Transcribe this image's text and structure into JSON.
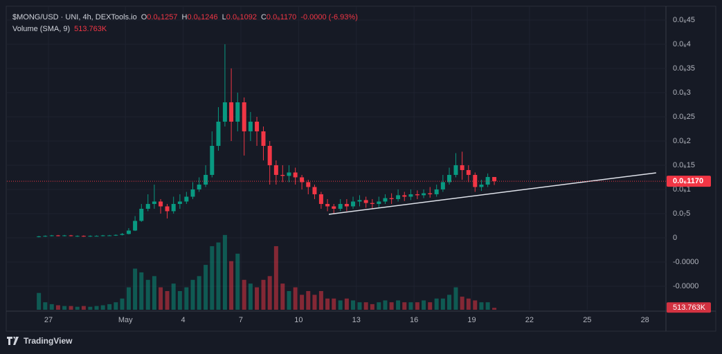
{
  "chart_data": {
    "type": "candlestick",
    "title": "$MONG/USD · UNI, 4h, DEXTools.io",
    "ohlc": [
      {
        "key": "O",
        "value": "0.0₆1257"
      },
      {
        "key": "H",
        "value": "0.0₆1246"
      },
      {
        "key": "L",
        "value": "0.0₆1092"
      },
      {
        "key": "C",
        "value": "0.0₆1170"
      }
    ],
    "change": "-0.0000 (-6.93%)",
    "indicator": {
      "name": "Volume (SMA, 9)",
      "value": "513.763K"
    },
    "up_color": "#089981",
    "down_color": "#f23645",
    "x": [
      -0.5,
      -0.17,
      0.17,
      0.5,
      0.83,
      1.17,
      1.5,
      1.83,
      2.17,
      2.5,
      2.83,
      3.17,
      3.5,
      3.83,
      4.17,
      4.5,
      4.83,
      5.17,
      5.5,
      5.83,
      6.17,
      6.5,
      6.83,
      7.17,
      7.5,
      7.83,
      8.17,
      8.5,
      8.83,
      9.17,
      9.5,
      9.83,
      10.17,
      10.5,
      10.83,
      11.17,
      11.5,
      11.83,
      12.17,
      12.5,
      12.83,
      13.17,
      13.5,
      13.83,
      14.17,
      14.5,
      14.83,
      15.17,
      15.5,
      15.83,
      16.17,
      16.5,
      16.83,
      17.17,
      17.5,
      17.83,
      18.17,
      18.5,
      18.83,
      19.17,
      19.5,
      19.83,
      20.17,
      20.5,
      20.83,
      21.17,
      21.5,
      21.83,
      22.17,
      22.5,
      22.83,
      23.17
    ],
    "open": [
      2e-09,
      3e-09,
      4e-09,
      5e-09,
      4e-09,
      5e-09,
      4e-09,
      4e-09,
      3e-09,
      4e-09,
      4e-09,
      5e-09,
      5e-09,
      6e-09,
      8e-09,
      1.5e-08,
      3.5e-08,
      6e-08,
      7e-08,
      7.5e-08,
      6.5e-08,
      5.5e-08,
      7e-08,
      7.5e-08,
      8.5e-08,
      1e-07,
      1.1e-07,
      1.3e-07,
      1.9e-07,
      2.4e-07,
      2.8e-07,
      2.4e-07,
      2.8e-07,
      2.2e-07,
      2.4e-07,
      2.2e-07,
      1.9e-07,
      1.5e-07,
      1.3e-07,
      1.28e-07,
      1.35e-07,
      1.25e-07,
      1.15e-07,
      1.05e-07,
      9e-08,
      7e-08,
      6.5e-08,
      6e-08,
      7e-08,
      6.5e-08,
      7.5e-08,
      7.8e-08,
      7.2e-08,
      7e-08,
      7.5e-08,
      8.2e-08,
      8e-08,
      8.8e-08,
      8.5e-08,
      9e-08,
      8.8e-08,
      9.2e-08,
      9e-08,
      1e-07,
      1.15e-07,
      1.3e-07,
      1.5e-07,
      1.4e-07,
      1.3e-07,
      1.05e-07,
      1.1e-07,
      1.257e-07
    ],
    "high": [
      4e-09,
      5e-09,
      6e-09,
      6e-09,
      6e-09,
      6e-09,
      5e-09,
      5e-09,
      5e-09,
      5e-09,
      6e-09,
      6e-09,
      7e-09,
      1e-08,
      2e-08,
      4.5e-08,
      7e-08,
      9e-08,
      1.1e-07,
      8e-08,
      7e-08,
      8.5e-08,
      9e-08,
      9.5e-08,
      1.15e-07,
      1.25e-07,
      1.5e-07,
      2.2e-07,
      2.7e-07,
      4e-07,
      3.5e-07,
      3e-07,
      2.9e-07,
      2.6e-07,
      2.5e-07,
      2.3e-07,
      2e-07,
      1.6e-07,
      1.5e-07,
      1.5e-07,
      1.45e-07,
      1.3e-07,
      1.2e-07,
      1.1e-07,
      9.5e-08,
      8e-08,
      7e-08,
      8e-08,
      8e-08,
      8.5e-08,
      8.8e-08,
      8.5e-08,
      8e-08,
      8.5e-08,
      9e-08,
      9.2e-08,
      1e-07,
      9.5e-08,
      1e-07,
      9.8e-08,
      1e-07,
      1.05e-07,
      1.1e-07,
      1.3e-07,
      1.45e-07,
      1.75e-07,
      1.78e-07,
      1.5e-07,
      1.35e-07,
      1.2e-07,
      1.33e-07,
      1.246e-07
    ],
    "low": [
      1e-09,
      2e-09,
      3e-09,
      3e-09,
      3e-09,
      3e-09,
      2e-09,
      2e-09,
      2e-09,
      3e-09,
      3e-09,
      4e-09,
      4e-09,
      5e-09,
      7e-09,
      1.4e-08,
      3.3e-08,
      5.5e-08,
      6e-08,
      5e-08,
      4e-08,
      5e-08,
      6e-08,
      7e-08,
      8e-08,
      9.5e-08,
      1.05e-07,
      1.25e-07,
      1.8e-07,
      2.3e-07,
      2e-07,
      2.2e-07,
      1.7e-07,
      2e-07,
      1.9e-07,
      1.6e-07,
      1.1e-07,
      1.1e-07,
      1.15e-07,
      1.15e-07,
      1.1e-07,
      1e-07,
      9e-08,
      8e-08,
      6e-08,
      5.5e-08,
      5e-08,
      5.5e-08,
      5.5e-08,
      6e-08,
      6.5e-08,
      6.2e-08,
      6e-08,
      6.2e-08,
      7e-08,
      7e-08,
      7.5e-08,
      7.6e-08,
      7.8e-08,
      8e-08,
      8.2e-08,
      8.3e-08,
      8.5e-08,
      9.5e-08,
      1.1e-07,
      1.25e-07,
      1.2e-07,
      1.15e-07,
      9.5e-08,
      9.7e-08,
      1.05e-07,
      1.092e-07
    ],
    "close": [
      3e-09,
      4e-09,
      5e-09,
      4e-09,
      5e-09,
      4e-09,
      4e-09,
      3e-09,
      4e-09,
      4e-09,
      5e-09,
      5e-09,
      6e-09,
      8e-09,
      1.5e-08,
      3.5e-08,
      6e-08,
      7e-08,
      7.5e-08,
      6.5e-08,
      5.5e-08,
      7e-08,
      7.5e-08,
      8.5e-08,
      1e-07,
      1.1e-07,
      1.3e-07,
      1.9e-07,
      2.4e-07,
      2.8e-07,
      2.4e-07,
      2.8e-07,
      2.2e-07,
      2.4e-07,
      2.2e-07,
      1.9e-07,
      1.5e-07,
      1.3e-07,
      1.28e-07,
      1.35e-07,
      1.25e-07,
      1.15e-07,
      1.05e-07,
      9e-08,
      7e-08,
      6.5e-08,
      6e-08,
      7e-08,
      6.5e-08,
      7.5e-08,
      7.8e-08,
      7.2e-08,
      7e-08,
      7.5e-08,
      8.2e-08,
      8e-08,
      8.8e-08,
      8.5e-08,
      9e-08,
      8.8e-08,
      9.2e-08,
      9e-08,
      1e-07,
      1.15e-07,
      1.3e-07,
      1.5e-07,
      1.4e-07,
      1.3e-07,
      1.05e-07,
      1.1e-07,
      1.257e-07,
      1.17e-07
    ],
    "volume": [
      4500000,
      2000000,
      1500000,
      1200000,
      1000000,
      1000000,
      800000,
      1000000,
      800000,
      1000000,
      1200000,
      1500000,
      2000000,
      3000000,
      6000000,
      11000000,
      10000000,
      8000000,
      9000000,
      6000000,
      5000000,
      7000000,
      5000000,
      6000000,
      8000000,
      9000000,
      12000000,
      17000000,
      18000000,
      20000000,
      13000000,
      15000000,
      8000000,
      7000000,
      6000000,
      8000000,
      9000000,
      17000000,
      7000000,
      5000000,
      6000000,
      4000000,
      5000000,
      4000000,
      5000000,
      3000000,
      3000000,
      2500000,
      3000000,
      2500000,
      2000000,
      2000000,
      1500000,
      2000000,
      2500000,
      2000000,
      2500000,
      2000000,
      2000000,
      2000000,
      2500000,
      2000000,
      3000000,
      3000000,
      4000000,
      6000000,
      3500000,
      3000000,
      2500000,
      2000000,
      2000000,
      513763
    ],
    "volume_value_labels": {
      "71": "513.763K"
    },
    "vlim": [
      0,
      81000000
    ],
    "ylim": [
      -1.486e-07,
      4.771e-07
    ],
    "yticks": [
      {
        "value": 4.5e-07,
        "label": "0.0₆45"
      },
      {
        "value": 4e-07,
        "label": "0.0₆4"
      },
      {
        "value": 3.5e-07,
        "label": "0.0₆35"
      },
      {
        "value": 3e-07,
        "label": "0.0₆3"
      },
      {
        "value": 2.5e-07,
        "label": "0.0₆25"
      },
      {
        "value": 2e-07,
        "label": "0.0₆2"
      },
      {
        "value": 1.5e-07,
        "label": "0.0₆15"
      },
      {
        "value": 1e-07,
        "label": "0.0₆1"
      },
      {
        "value": 5e-08,
        "label": "0.0₇5"
      },
      0,
      {
        "value": -5e-08,
        "label": "-0.0000"
      },
      {
        "value": -1e-07,
        "label": "-0.0000"
      }
    ],
    "xlim": [
      -2.16,
      32.09
    ],
    "xticks": [
      {
        "value": 0,
        "label": "27"
      },
      {
        "value": 4,
        "label": "May"
      },
      {
        "value": 7,
        "label": "4"
      },
      {
        "value": 10,
        "label": "7"
      },
      {
        "value": 13,
        "label": "10"
      },
      {
        "value": 16,
        "label": "13"
      },
      {
        "value": 19,
        "label": "16"
      },
      {
        "value": 22,
        "label": "19"
      },
      {
        "value": 25,
        "label": "22"
      },
      {
        "value": 28,
        "label": "25"
      },
      {
        "value": 31,
        "label": "28"
      }
    ],
    "grid": true,
    "last_price": {
      "value": 1.17e-07,
      "label": "0.0₆1170",
      "color": "#f23645"
    },
    "trendline": {
      "x": [
        14.57,
        31.58
      ],
      "y": [
        4.86e-08,
        1.343e-07
      ],
      "color": "#e0e3eb"
    }
  },
  "branding": "TradingView"
}
